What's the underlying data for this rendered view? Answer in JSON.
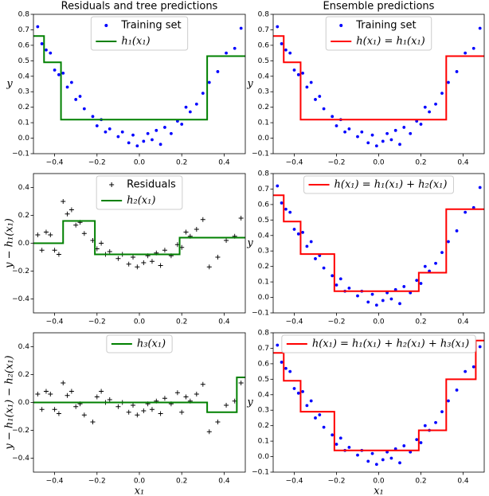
{
  "chart_data": [
    {
      "type": "scatter",
      "title": "Residuals and tree predictions",
      "ylabel": "y",
      "legend": "upper center",
      "xlim": [
        -0.5,
        0.5
      ],
      "ylim": [
        -0.1,
        0.8
      ],
      "xticks": [
        {
          "value": -0.4,
          "label": "−0.4"
        },
        {
          "value": -0.2,
          "label": "−0.2"
        },
        {
          "value": 0,
          "label": "0.0"
        },
        0.2,
        0.4
      ],
      "yticks": [
        {
          "value": -0.1,
          "label": "−0.1"
        },
        {
          "value": 0,
          "label": "0.0"
        },
        0.1,
        0.2,
        0.3,
        0.4,
        0.5,
        0.6,
        0.7,
        0.8
      ],
      "series": [
        {
          "name": "Training set",
          "type": "scatter",
          "marker": "dot",
          "color": "#0000ff",
          "x": [
            -0.48,
            -0.46,
            -0.44,
            -0.42,
            -0.4,
            -0.38,
            -0.36,
            -0.34,
            -0.32,
            -0.3,
            -0.28,
            -0.26,
            -0.22,
            -0.2,
            -0.18,
            -0.16,
            -0.14,
            -0.1,
            -0.08,
            -0.05,
            -0.03,
            -0.01,
            0.02,
            0.04,
            0.06,
            0.08,
            0.1,
            0.12,
            0.15,
            0.18,
            0.2,
            0.22,
            0.24,
            0.27,
            0.3,
            0.33,
            0.37,
            0.41,
            0.45,
            0.48
          ],
          "values": [
            0.72,
            0.61,
            0.57,
            0.55,
            0.44,
            0.41,
            0.42,
            0.33,
            0.36,
            0.25,
            0.27,
            0.19,
            0.14,
            0.08,
            0.12,
            0.04,
            0.06,
            0.01,
            0.04,
            -0.03,
            0.02,
            -0.05,
            -0.02,
            0.03,
            -0.01,
            0.05,
            -0.04,
            0.07,
            0.03,
            0.11,
            0.09,
            0.2,
            0.17,
            0.22,
            0.29,
            0.36,
            0.43,
            0.55,
            0.58,
            0.71
          ]
        },
        {
          "name": "h₁(x₁)",
          "type": "line",
          "color": "#008000",
          "x": [
            -0.5,
            -0.45,
            -0.45,
            -0.37,
            -0.37,
            0.32,
            0.32,
            0.5
          ],
          "values": [
            0.66,
            0.66,
            0.49,
            0.49,
            0.12,
            0.12,
            0.53,
            0.53
          ]
        }
      ]
    },
    {
      "type": "scatter",
      "title": "Ensemble predictions",
      "ylabel": "y",
      "legend": "upper center",
      "xlim": [
        -0.5,
        0.5
      ],
      "ylim": [
        -0.1,
        0.8
      ],
      "xticks": [
        {
          "value": -0.4,
          "label": "−0.4"
        },
        {
          "value": -0.2,
          "label": "−0.2"
        },
        {
          "value": 0,
          "label": "0.0"
        },
        0.2,
        0.4
      ],
      "yticks": [
        {
          "value": -0.1,
          "label": "−0.1"
        },
        {
          "value": 0,
          "label": "0.0"
        },
        0.1,
        0.2,
        0.3,
        0.4,
        0.5,
        0.6,
        0.7,
        0.8
      ],
      "series": [
        {
          "name": "Training set",
          "type": "scatter",
          "marker": "dot",
          "color": "#0000ff",
          "x": [
            -0.48,
            -0.46,
            -0.44,
            -0.42,
            -0.4,
            -0.38,
            -0.36,
            -0.34,
            -0.32,
            -0.3,
            -0.28,
            -0.26,
            -0.22,
            -0.2,
            -0.18,
            -0.16,
            -0.14,
            -0.1,
            -0.08,
            -0.05,
            -0.03,
            -0.01,
            0.02,
            0.04,
            0.06,
            0.08,
            0.1,
            0.12,
            0.15,
            0.18,
            0.2,
            0.22,
            0.24,
            0.27,
            0.3,
            0.33,
            0.37,
            0.41,
            0.45,
            0.48
          ],
          "values": [
            0.72,
            0.61,
            0.57,
            0.55,
            0.44,
            0.41,
            0.42,
            0.33,
            0.36,
            0.25,
            0.27,
            0.19,
            0.14,
            0.08,
            0.12,
            0.04,
            0.06,
            0.01,
            0.04,
            -0.03,
            0.02,
            -0.05,
            -0.02,
            0.03,
            -0.01,
            0.05,
            -0.04,
            0.07,
            0.03,
            0.11,
            0.09,
            0.2,
            0.17,
            0.22,
            0.29,
            0.36,
            0.43,
            0.55,
            0.58,
            0.71
          ]
        },
        {
          "name": "h(x₁) = h₁(x₁)",
          "type": "line",
          "color": "#ff0000",
          "x": [
            -0.5,
            -0.45,
            -0.45,
            -0.37,
            -0.37,
            0.32,
            0.32,
            0.5
          ],
          "values": [
            0.66,
            0.66,
            0.49,
            0.49,
            0.12,
            0.12,
            0.53,
            0.53
          ]
        }
      ]
    },
    {
      "type": "scatter",
      "ylabel": "y − h₁(x₁)",
      "legend": "upper center",
      "xlim": [
        -0.5,
        0.5
      ],
      "ylim": [
        -0.5,
        0.5
      ],
      "xticks": [
        {
          "value": -0.4,
          "label": "−0.4"
        },
        {
          "value": -0.2,
          "label": "−0.2"
        },
        {
          "value": 0,
          "label": "0.0"
        },
        0.2,
        0.4
      ],
      "yticks": [
        {
          "value": -0.4,
          "label": "−0.4"
        },
        {
          "value": -0.2,
          "label": "−0.2"
        },
        {
          "value": 0,
          "label": "0.0"
        },
        0.2,
        0.4
      ],
      "series": [
        {
          "name": "Residuals",
          "type": "scatter",
          "marker": "plus",
          "color": "#000000",
          "x": [
            -0.48,
            -0.46,
            -0.44,
            -0.42,
            -0.4,
            -0.38,
            -0.36,
            -0.34,
            -0.32,
            -0.3,
            -0.28,
            -0.26,
            -0.22,
            -0.2,
            -0.18,
            -0.16,
            -0.14,
            -0.1,
            -0.08,
            -0.05,
            -0.03,
            -0.01,
            0.02,
            0.04,
            0.06,
            0.08,
            0.1,
            0.12,
            0.15,
            0.18,
            0.2,
            0.22,
            0.24,
            0.27,
            0.3,
            0.33,
            0.37,
            0.41,
            0.45,
            0.48
          ],
          "values": [
            0.06,
            -0.05,
            0.08,
            0.06,
            -0.05,
            -0.08,
            0.3,
            0.21,
            0.24,
            0.13,
            0.15,
            0.07,
            0.02,
            -0.04,
            0.0,
            -0.08,
            -0.06,
            -0.11,
            -0.08,
            -0.15,
            -0.1,
            -0.17,
            -0.14,
            -0.09,
            -0.13,
            -0.07,
            -0.16,
            -0.05,
            -0.09,
            -0.01,
            -0.03,
            0.08,
            0.05,
            0.1,
            0.17,
            -0.17,
            -0.1,
            0.02,
            0.05,
            0.18
          ]
        },
        {
          "name": "h₂(x₁)",
          "type": "line",
          "color": "#008000",
          "x": [
            -0.5,
            -0.36,
            -0.36,
            -0.21,
            -0.21,
            0.19,
            0.19,
            0.5
          ],
          "values": [
            0,
            0,
            0.16,
            0.16,
            -0.08,
            -0.08,
            0.04,
            0.04
          ]
        }
      ]
    },
    {
      "type": "scatter",
      "ylabel": "y",
      "legend": "upper center",
      "xlim": [
        -0.5,
        0.5
      ],
      "ylim": [
        -0.1,
        0.8
      ],
      "xticks": [
        {
          "value": -0.4,
          "label": "−0.4"
        },
        {
          "value": -0.2,
          "label": "−0.2"
        },
        {
          "value": 0,
          "label": "0.0"
        },
        0.2,
        0.4
      ],
      "yticks": [
        {
          "value": -0.1,
          "label": "−0.1"
        },
        {
          "value": 0,
          "label": "0.0"
        },
        0.1,
        0.2,
        0.3,
        0.4,
        0.5,
        0.6,
        0.7,
        0.8
      ],
      "series": [
        {
          "type": "scatter",
          "marker": "dot",
          "color": "#0000ff",
          "x": [
            -0.48,
            -0.46,
            -0.44,
            -0.42,
            -0.4,
            -0.38,
            -0.36,
            -0.34,
            -0.32,
            -0.3,
            -0.28,
            -0.26,
            -0.22,
            -0.2,
            -0.18,
            -0.16,
            -0.14,
            -0.1,
            -0.08,
            -0.05,
            -0.03,
            -0.01,
            0.02,
            0.04,
            0.06,
            0.08,
            0.1,
            0.12,
            0.15,
            0.18,
            0.2,
            0.22,
            0.24,
            0.27,
            0.3,
            0.33,
            0.37,
            0.41,
            0.45,
            0.48
          ],
          "values": [
            0.72,
            0.61,
            0.57,
            0.55,
            0.44,
            0.41,
            0.42,
            0.33,
            0.36,
            0.25,
            0.27,
            0.19,
            0.14,
            0.08,
            0.12,
            0.04,
            0.06,
            0.01,
            0.04,
            -0.03,
            0.02,
            -0.05,
            -0.02,
            0.03,
            -0.01,
            0.05,
            -0.04,
            0.07,
            0.03,
            0.11,
            0.09,
            0.2,
            0.17,
            0.22,
            0.29,
            0.36,
            0.43,
            0.55,
            0.58,
            0.71
          ]
        },
        {
          "name": "h(x₁) = h₁(x₁) + h₂(x₁)",
          "type": "line",
          "color": "#ff0000",
          "x": [
            -0.5,
            -0.45,
            -0.45,
            -0.37,
            -0.37,
            -0.21,
            -0.21,
            0.19,
            0.19,
            0.32,
            0.32,
            0.5
          ],
          "values": [
            0.66,
            0.66,
            0.49,
            0.49,
            0.28,
            0.28,
            0.04,
            0.04,
            0.16,
            0.16,
            0.57,
            0.57
          ]
        }
      ]
    },
    {
      "type": "scatter",
      "xlabel": "x₁",
      "ylabel": "y − h₁(x₁) − h₂(x₁)",
      "legend": "upper center",
      "xlim": [
        -0.5,
        0.5
      ],
      "ylim": [
        -0.5,
        0.5
      ],
      "xticks": [
        {
          "value": -0.4,
          "label": "−0.4"
        },
        {
          "value": -0.2,
          "label": "−0.2"
        },
        {
          "value": 0,
          "label": "0.0"
        },
        0.2,
        0.4
      ],
      "yticks": [
        {
          "value": -0.4,
          "label": "−0.4"
        },
        {
          "value": -0.2,
          "label": "−0.2"
        },
        {
          "value": 0,
          "label": "0.0"
        },
        0.2,
        0.4
      ],
      "series": [
        {
          "type": "scatter",
          "marker": "plus",
          "color": "#000000",
          "x": [
            -0.48,
            -0.46,
            -0.44,
            -0.42,
            -0.4,
            -0.38,
            -0.36,
            -0.34,
            -0.32,
            -0.3,
            -0.28,
            -0.26,
            -0.22,
            -0.2,
            -0.18,
            -0.16,
            -0.14,
            -0.1,
            -0.08,
            -0.05,
            -0.03,
            -0.01,
            0.02,
            0.04,
            0.06,
            0.08,
            0.1,
            0.12,
            0.15,
            0.18,
            0.2,
            0.22,
            0.24,
            0.27,
            0.3,
            0.33,
            0.37,
            0.41,
            0.45,
            0.48
          ],
          "values": [
            0.06,
            -0.05,
            0.08,
            0.06,
            -0.05,
            -0.08,
            0.14,
            0.05,
            0.08,
            -0.03,
            -0.01,
            -0.09,
            -0.14,
            0.04,
            0.08,
            0.0,
            0.02,
            -0.03,
            0.0,
            -0.07,
            -0.02,
            -0.09,
            -0.06,
            -0.01,
            -0.05,
            0.01,
            -0.08,
            0.03,
            -0.01,
            0.07,
            -0.07,
            0.04,
            0.01,
            0.06,
            0.13,
            -0.21,
            -0.14,
            -0.02,
            0.01,
            0.14
          ]
        },
        {
          "name": "h₃(x₁)",
          "type": "line",
          "color": "#008000",
          "x": [
            -0.5,
            0.32,
            0.32,
            0.46,
            0.46,
            0.5
          ],
          "values": [
            0,
            0,
            -0.07,
            -0.07,
            0.18,
            0.18
          ]
        }
      ]
    },
    {
      "type": "scatter",
      "xlabel": "x₁",
      "ylabel": "y",
      "legend": "upper center",
      "xlim": [
        -0.5,
        0.5
      ],
      "ylim": [
        -0.1,
        0.8
      ],
      "xticks": [
        {
          "value": -0.4,
          "label": "−0.4"
        },
        {
          "value": -0.2,
          "label": "−0.2"
        },
        {
          "value": 0,
          "label": "0.0"
        },
        0.2,
        0.4
      ],
      "yticks": [
        {
          "value": -0.1,
          "label": "−0.1"
        },
        {
          "value": 0,
          "label": "0.0"
        },
        0.1,
        0.2,
        0.3,
        0.4,
        0.5,
        0.6,
        0.7,
        0.8
      ],
      "series": [
        {
          "type": "scatter",
          "marker": "dot",
          "color": "#0000ff",
          "x": [
            -0.48,
            -0.46,
            -0.44,
            -0.42,
            -0.4,
            -0.38,
            -0.36,
            -0.34,
            -0.32,
            -0.3,
            -0.28,
            -0.26,
            -0.22,
            -0.2,
            -0.18,
            -0.16,
            -0.14,
            -0.1,
            -0.08,
            -0.05,
            -0.03,
            -0.01,
            0.02,
            0.04,
            0.06,
            0.08,
            0.1,
            0.12,
            0.15,
            0.18,
            0.2,
            0.22,
            0.24,
            0.27,
            0.3,
            0.33,
            0.37,
            0.41,
            0.45,
            0.48
          ],
          "values": [
            0.72,
            0.61,
            0.57,
            0.55,
            0.44,
            0.41,
            0.42,
            0.33,
            0.36,
            0.25,
            0.27,
            0.19,
            0.14,
            0.08,
            0.12,
            0.04,
            0.06,
            0.01,
            0.04,
            -0.03,
            0.02,
            -0.05,
            -0.02,
            0.03,
            -0.01,
            0.05,
            -0.04,
            0.07,
            0.03,
            0.11,
            0.09,
            0.2,
            0.17,
            0.22,
            0.29,
            0.36,
            0.43,
            0.55,
            0.58,
            0.71
          ]
        },
        {
          "name": "h(x₁) = h₁(x₁) + h₂(x₁) + h₃(x₁)",
          "type": "line",
          "color": "#ff0000",
          "x": [
            -0.5,
            -0.45,
            -0.45,
            -0.37,
            -0.37,
            -0.21,
            -0.21,
            0.19,
            0.19,
            0.32,
            0.32,
            0.46,
            0.46,
            0.5
          ],
          "values": [
            0.67,
            0.67,
            0.49,
            0.49,
            0.29,
            0.29,
            0.04,
            0.04,
            0.17,
            0.17,
            0.5,
            0.5,
            0.75,
            0.75
          ]
        }
      ]
    }
  ]
}
